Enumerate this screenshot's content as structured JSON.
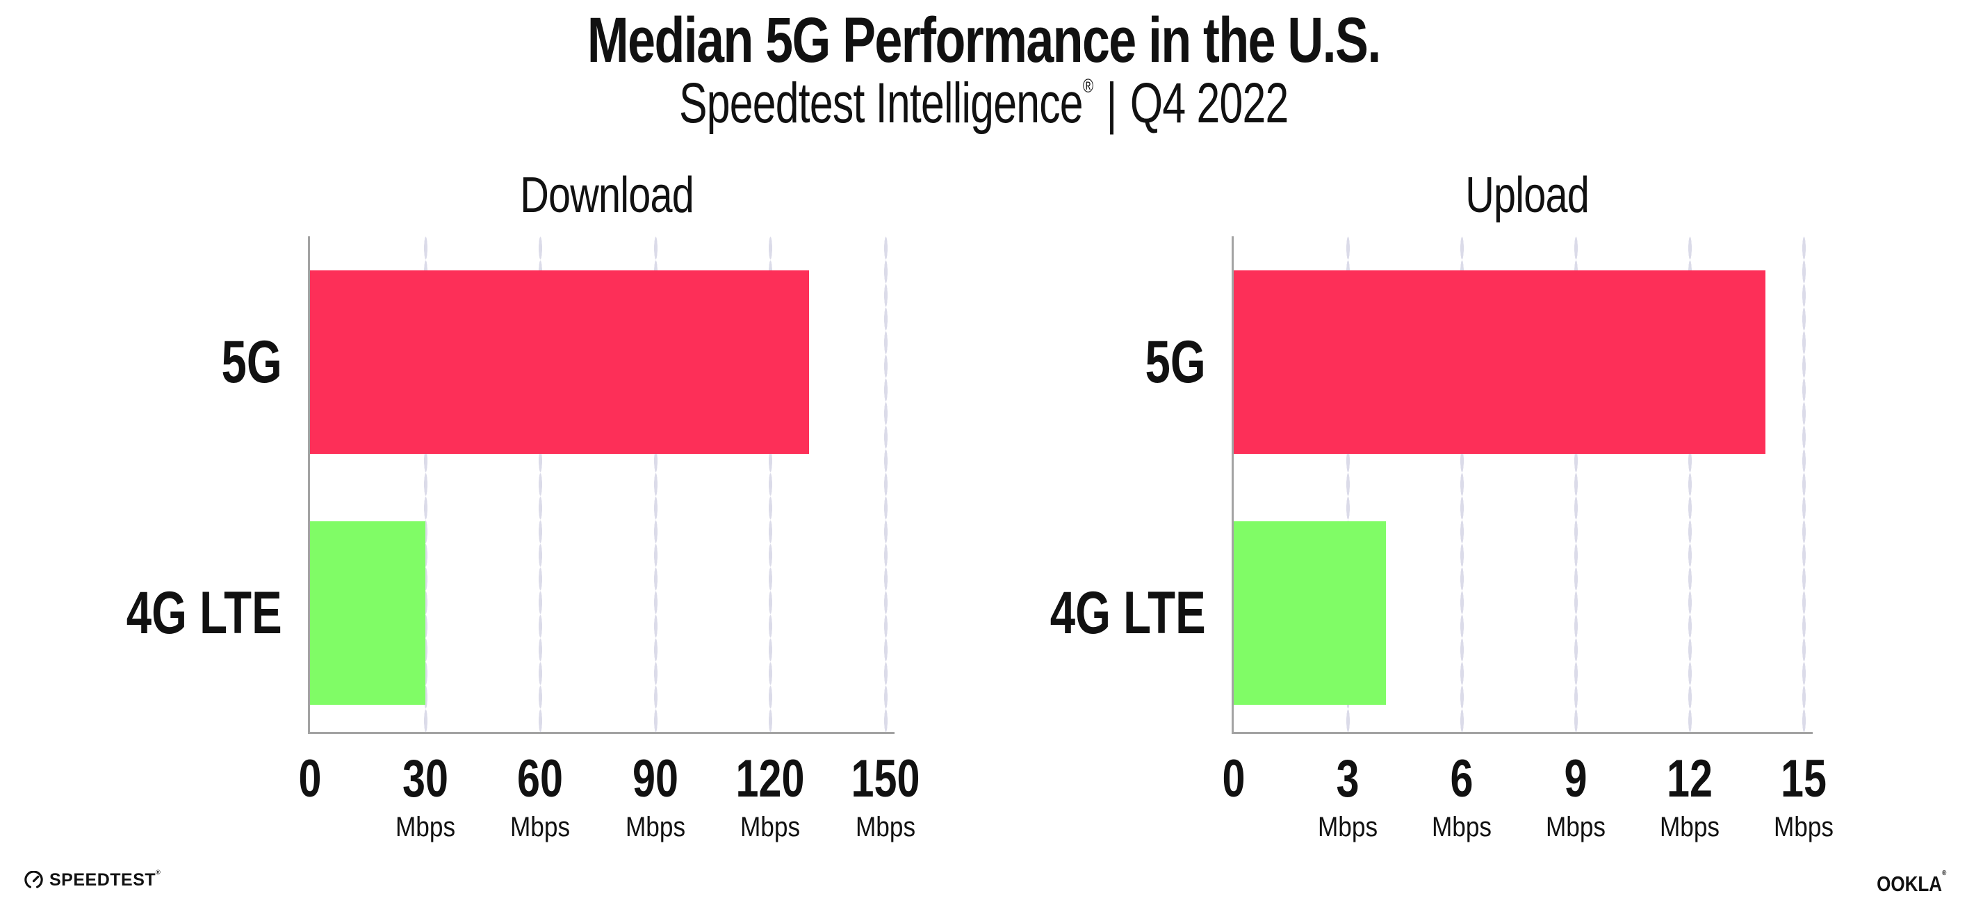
{
  "header": {
    "title": "Median 5G Performance in the U.S.",
    "subtitle_brand": "Speedtest Intelligence",
    "subtitle_reg": "®",
    "subtitle_sep": "|",
    "subtitle_period": "Q4 2022"
  },
  "chart_data": [
    {
      "type": "bar",
      "orientation": "horizontal",
      "title": "Download",
      "categories": [
        "5G",
        "4G LTE"
      ],
      "values": [
        130,
        30
      ],
      "unit": "Mbps",
      "xlim": [
        0,
        150
      ],
      "ticks": [
        0,
        30,
        60,
        90,
        120,
        150
      ],
      "tick_unit": "Mbps",
      "bar_colors": [
        "#FD2F58",
        "#80FC66"
      ],
      "grid": "dotted-vertical",
      "legend": "none"
    },
    {
      "type": "bar",
      "orientation": "horizontal",
      "title": "Upload",
      "categories": [
        "5G",
        "4G LTE"
      ],
      "values": [
        14,
        4
      ],
      "unit": "Mbps",
      "xlim": [
        0,
        15
      ],
      "ticks": [
        0,
        3,
        6,
        9,
        12,
        15
      ],
      "tick_unit": "Mbps",
      "bar_colors": [
        "#FD2F58",
        "#80FC66"
      ],
      "grid": "dotted-vertical",
      "legend": "none"
    }
  ],
  "footer": {
    "speedtest_label": "SPEEDTEST",
    "speedtest_mark": "®",
    "ookla_label": "OOKLA",
    "ookla_mark": "®"
  },
  "colors": {
    "bar_5g": "#FD2F58",
    "bar_4g_lte": "#80FC66",
    "axis": "#A3A3A3",
    "gridline_dot": "#DBDBE9",
    "text": "#111111",
    "background": "#FFFFFF"
  }
}
